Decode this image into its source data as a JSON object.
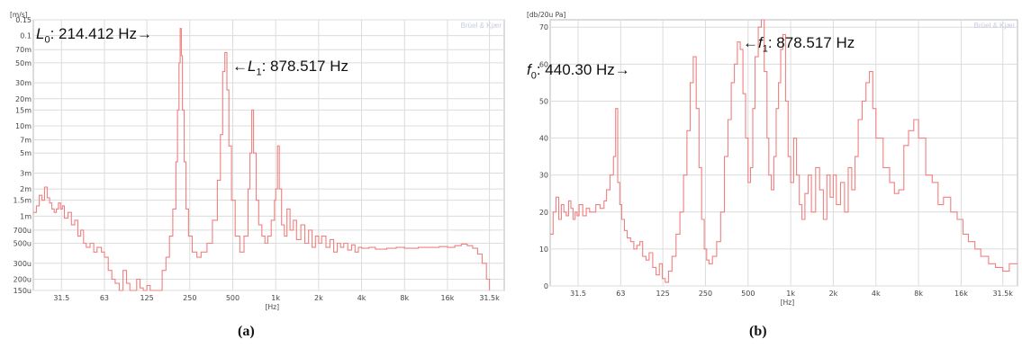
{
  "chart_data": [
    {
      "panel_label": "(a)",
      "type": "line",
      "brand": "Brüel & Kjær",
      "xlabel": "[Hz]",
      "ylabel": "[m/s]",
      "x_scale": "log",
      "y_scale": "log",
      "xlim": [
        20,
        40000
      ],
      "ylim": [
        0.00015,
        0.15
      ],
      "xticks": [
        31.5,
        63,
        125,
        250,
        500,
        1000,
        2000,
        4000,
        8000,
        16000,
        31500
      ],
      "xtick_labels": [
        "31.5",
        "63",
        "125",
        "250",
        "500",
        "1k",
        "2k",
        "4k",
        "8k",
        "16k",
        "31.5k"
      ],
      "yticks": [
        0.15,
        0.1,
        0.07,
        0.05,
        0.03,
        0.02,
        0.015,
        0.01,
        0.007,
        0.005,
        0.003,
        0.002,
        0.0015,
        0.001,
        0.0007,
        0.0005,
        0.0003,
        0.0002,
        0.00015
      ],
      "ytick_labels": [
        "0.15",
        "0.1",
        "70m",
        "50m",
        "30m",
        "20m",
        "15m",
        "10m",
        "7m",
        "5m",
        "3m",
        "2m",
        "1.5m",
        "1m",
        "700u",
        "500u",
        "300u",
        "200u",
        "150u"
      ],
      "grid": true,
      "line_color": "#f08080",
      "annotations": [
        {
          "var": "L",
          "sub": "0",
          "text": ": 214.412 Hz→",
          "x": 214.412
        },
        {
          "pre": "←",
          "var": "L",
          "sub": "1",
          "text": ": 878.517 Hz",
          "x": 878.517
        }
      ],
      "series": [
        {
          "x": [
            20,
            21,
            22,
            23,
            24,
            25,
            26,
            27,
            28,
            29,
            30,
            31,
            32,
            33,
            35,
            37,
            39,
            41,
            43,
            45,
            47,
            50,
            53,
            56,
            60,
            63,
            67,
            71,
            75,
            80,
            85,
            90,
            95,
            100,
            106,
            112,
            118,
            125,
            132,
            140,
            150,
            160,
            170,
            180,
            190,
            200,
            205,
            210,
            214,
            218,
            222,
            228,
            235,
            245,
            260,
            280,
            300,
            330,
            360,
            390,
            410,
            425,
            440,
            455,
            470,
            490,
            520,
            560,
            600,
            640,
            660,
            680,
            700,
            730,
            760,
            800,
            840,
            880,
            930,
            980,
            1000,
            1030,
            1060,
            1100,
            1150,
            1200,
            1260,
            1330,
            1400,
            1500,
            1600,
            1700,
            1800,
            1900,
            2000,
            2100,
            2250,
            2400,
            2550,
            2700,
            2850,
            3000,
            3200,
            3400,
            3600,
            3800,
            4000,
            4500,
            5000,
            6000,
            7000,
            8000,
            10000,
            12000,
            14000,
            16000,
            18000,
            20000,
            22000,
            24000,
            26000,
            28000,
            30000,
            31500
          ],
          "y": [
            0.0011,
            0.0013,
            0.0017,
            0.0015,
            0.0021,
            0.0016,
            0.0014,
            0.0012,
            0.0011,
            0.0012,
            0.0014,
            0.0012,
            0.0013,
            0.00095,
            0.0011,
            0.0008,
            0.0009,
            0.0006,
            0.0007,
            0.0005,
            0.00045,
            0.0005,
            0.0004,
            0.00045,
            0.0004,
            0.00035,
            0.00025,
            0.0002,
            0.00018,
            0.00015,
            0.00025,
            0.00018,
            0.00015,
            0.00015,
            0.0002,
            0.00016,
            0.00015,
            0.00017,
            0.00015,
            0.00015,
            0.00015,
            0.00025,
            0.00035,
            0.0006,
            0.0012,
            0.004,
            0.015,
            0.05,
            0.12,
            0.06,
            0.015,
            0.004,
            0.0012,
            0.0006,
            0.0004,
            0.00035,
            0.0004,
            0.0005,
            0.0009,
            0.0025,
            0.008,
            0.04,
            0.065,
            0.025,
            0.006,
            0.0015,
            0.0006,
            0.0004,
            0.0006,
            0.002,
            0.005,
            0.015,
            0.005,
            0.0015,
            0.0008,
            0.0006,
            0.0005,
            0.0006,
            0.0009,
            0.0015,
            0.002,
            0.006,
            0.002,
            0.0008,
            0.0006,
            0.0012,
            0.0007,
            0.0009,
            0.00055,
            0.0008,
            0.0005,
            0.0007,
            0.00045,
            0.0006,
            0.0005,
            0.0006,
            0.00045,
            0.00055,
            0.0004,
            0.0005,
            0.00045,
            0.0005,
            0.00042,
            0.00048,
            0.0004,
            0.00045,
            0.00044,
            0.00045,
            0.00043,
            0.00044,
            0.00045,
            0.00044,
            0.00045,
            0.00045,
            0.00046,
            0.00045,
            0.00047,
            0.00049,
            0.00047,
            0.00044,
            0.00038,
            0.0003,
            0.0002,
            0.00015
          ]
        }
      ]
    },
    {
      "panel_label": "(b)",
      "type": "line",
      "brand": "Brüel & Kjær",
      "xlabel": "[Hz]",
      "ylabel": "[db/20u Pa]",
      "x_scale": "log",
      "xlim": [
        20,
        40000
      ],
      "ylim": [
        0,
        72
      ],
      "xticks": [
        31.5,
        63,
        125,
        250,
        500,
        1000,
        2000,
        4000,
        8000,
        16000,
        31500
      ],
      "xtick_labels": [
        "31.5",
        "63",
        "125",
        "250",
        "500",
        "1k",
        "2k",
        "4k",
        "8k",
        "16k",
        "31.5k"
      ],
      "yticks": [
        0,
        10,
        20,
        30,
        40,
        50,
        60,
        70
      ],
      "ytick_labels": [
        "0",
        "10",
        "20",
        "30",
        "40",
        "50",
        "60",
        "70"
      ],
      "grid": true,
      "line_color": "#f08080",
      "annotations": [
        {
          "var": "f",
          "sub": "0",
          "text": ": 440.30 Hz→",
          "x": 440.3
        },
        {
          "pre": "←",
          "var": "f",
          "sub": "1",
          "text": ": 878.517 Hz",
          "x": 878.517
        }
      ],
      "series": [
        {
          "x": [
            20,
            21,
            22,
            23,
            24,
            25,
            26,
            27,
            28,
            29,
            30,
            31,
            32,
            34,
            36,
            38,
            40,
            42,
            45,
            48,
            50,
            53,
            56,
            58,
            60,
            62,
            64,
            67,
            70,
            74,
            78,
            82,
            86,
            90,
            95,
            100,
            106,
            112,
            118,
            124,
            130,
            137,
            145,
            155,
            165,
            175,
            185,
            195,
            205,
            215,
            225,
            235,
            245,
            255,
            265,
            280,
            300,
            320,
            340,
            360,
            380,
            400,
            420,
            440,
            460,
            480,
            500,
            520,
            540,
            560,
            590,
            620,
            650,
            680,
            700,
            730,
            760,
            790,
            820,
            850,
            880,
            920,
            960,
            1000,
            1050,
            1100,
            1150,
            1200,
            1260,
            1330,
            1400,
            1500,
            1600,
            1700,
            1800,
            1900,
            2000,
            2100,
            2250,
            2400,
            2550,
            2700,
            2850,
            3000,
            3200,
            3400,
            3600,
            3800,
            4000,
            4500,
            5000,
            5400,
            5800,
            6300,
            6800,
            7400,
            8000,
            9000,
            10000,
            11000,
            12000,
            13500,
            15000,
            16500,
            18000,
            20000,
            22000,
            25000,
            28000,
            31500,
            35000,
            40000
          ],
          "y": [
            14,
            20,
            24,
            18,
            22,
            20,
            19,
            23,
            21,
            18,
            20,
            19,
            22,
            19,
            21,
            20,
            20,
            22,
            21,
            23,
            26,
            30,
            35,
            48,
            28,
            22,
            18,
            15,
            13,
            12,
            10,
            11,
            12,
            8,
            7,
            9,
            5,
            3,
            6,
            2,
            1,
            4,
            8,
            14,
            20,
            30,
            42,
            55,
            62,
            48,
            32,
            18,
            10,
            7,
            6,
            8,
            12,
            20,
            35,
            45,
            55,
            60,
            66,
            64,
            52,
            40,
            28,
            32,
            48,
            62,
            70,
            72,
            58,
            40,
            30,
            26,
            35,
            48,
            55,
            64,
            68,
            50,
            35,
            28,
            40,
            30,
            22,
            18,
            25,
            30,
            20,
            32,
            26,
            18,
            30,
            24,
            30,
            22,
            28,
            20,
            32,
            26,
            35,
            45,
            50,
            55,
            58,
            48,
            40,
            32,
            28,
            25,
            26,
            38,
            42,
            45,
            40,
            30,
            28,
            22,
            24,
            20,
            18,
            14,
            12,
            10,
            8,
            6,
            5,
            4,
            6,
            6
          ]
        }
      ]
    }
  ]
}
